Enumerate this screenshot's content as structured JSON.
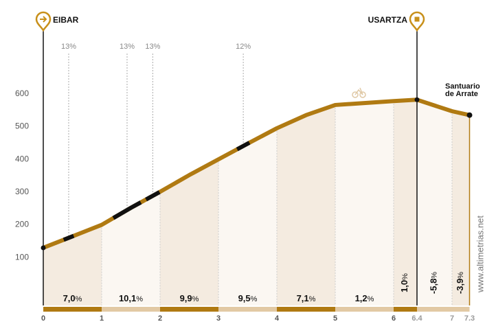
{
  "chart_data": {
    "type": "elevation_profile",
    "x": [
      0,
      0.5,
      1,
      1.5,
      2,
      2.5,
      3,
      3.5,
      4,
      4.5,
      5,
      6,
      6.4,
      7,
      7.3
    ],
    "values": [
      130,
      165,
      200,
      252,
      301,
      352,
      400,
      448,
      495,
      535,
      566,
      578,
      582,
      547,
      535
    ],
    "color": "#b07a12",
    "ylim": [
      0,
      700
    ],
    "yticks": [
      100,
      200,
      300,
      400,
      500,
      600
    ],
    "xlim": [
      0,
      7.3
    ],
    "xticks": [
      0,
      1,
      2,
      3,
      4,
      5,
      6,
      6.4,
      7,
      7.3
    ],
    "segments": {
      "values": [
        7.0,
        10.1,
        9.9,
        9.5,
        7.1,
        1.2,
        1.0,
        -5.8,
        -3.9
      ],
      "value_labels": [
        "7,0%",
        "10,1%",
        "9,9%",
        "9,5%",
        "7,1%",
        "1,2%",
        "1,0%",
        "-5,8%",
        "-3,9%"
      ]
    },
    "steep_sections": [
      {
        "start": 0.35,
        "end": 0.52,
        "label": "13%"
      },
      {
        "start": 1.2,
        "end": 1.67,
        "label": "13%"
      },
      {
        "start": 1.76,
        "end": 1.99,
        "label": "13%"
      },
      {
        "start": 3.32,
        "end": 3.53,
        "label": "12%"
      }
    ],
    "waypoints": [
      {
        "name": "EIBAR",
        "km": 0
      },
      {
        "name": "USARTZA",
        "km": 6.4
      }
    ],
    "end_label": [
      "Santuario",
      "de Arrate"
    ],
    "watermark": "www.altimetrias.net"
  }
}
